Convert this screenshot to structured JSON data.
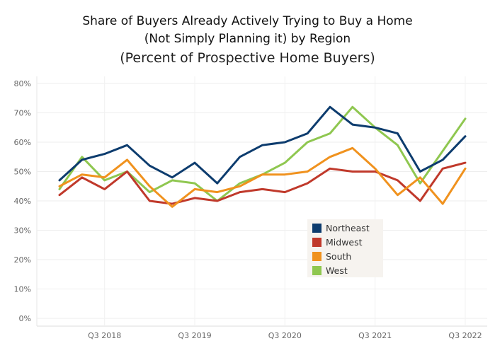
{
  "chart_data": {
    "type": "line",
    "title_lines": [
      "Share of Buyers Already Actively Trying to Buy a Home",
      "(Not Simply Planning it) by Region"
    ],
    "subtitle": "(Percent of Prospective Home Buyers)",
    "xlabel": "",
    "ylabel": "",
    "x": [
      "Q1 2018",
      "Q2 2018",
      "Q3 2018",
      "Q4 2018",
      "Q1 2019",
      "Q2 2019",
      "Q3 2019",
      "Q4 2019",
      "Q1 2020",
      "Q2 2020",
      "Q3 2020",
      "Q4 2020",
      "Q1 2021",
      "Q2 2021",
      "Q3 2021",
      "Q4 2021",
      "Q1 2022",
      "Q2 2022",
      "Q3 2022"
    ],
    "x_tick_labels": [
      "Q3 2018",
      "Q3 2019",
      "Q3 2020",
      "Q3 2021",
      "Q3 2022"
    ],
    "x_tick_positions": [
      "Q3 2018",
      "Q3 2019",
      "Q3 2020",
      "Q3 2021",
      "Q3 2022"
    ],
    "y_tick_labels": [
      "0%",
      "10%",
      "20%",
      "30%",
      "40%",
      "50%",
      "60%",
      "70%",
      "80%"
    ],
    "ylim": [
      0,
      80
    ],
    "grid": true,
    "legend_position": "center-right",
    "series": [
      {
        "name": "Northeast",
        "color": "#0d3c6e",
        "values": [
          47,
          54,
          56,
          59,
          52,
          48,
          53,
          46,
          55,
          59,
          60,
          63,
          72,
          66,
          65,
          63,
          50,
          54,
          62
        ]
      },
      {
        "name": "Midwest",
        "color": "#c0392b",
        "values": [
          42,
          48,
          44,
          50,
          40,
          39,
          41,
          40,
          43,
          44,
          43,
          46,
          51,
          50,
          50,
          47,
          40,
          51,
          53
        ]
      },
      {
        "name": "South",
        "color": "#f0921e",
        "values": [
          45,
          49,
          48,
          54,
          45,
          38,
          44,
          43,
          45,
          49,
          49,
          50,
          55,
          58,
          51,
          42,
          48,
          39,
          51
        ]
      },
      {
        "name": "West",
        "color": "#8fc750",
        "values": [
          44,
          55,
          47,
          50,
          43,
          47,
          46,
          40,
          46,
          49,
          53,
          60,
          63,
          72,
          65,
          59,
          46,
          57,
          68
        ]
      }
    ]
  }
}
